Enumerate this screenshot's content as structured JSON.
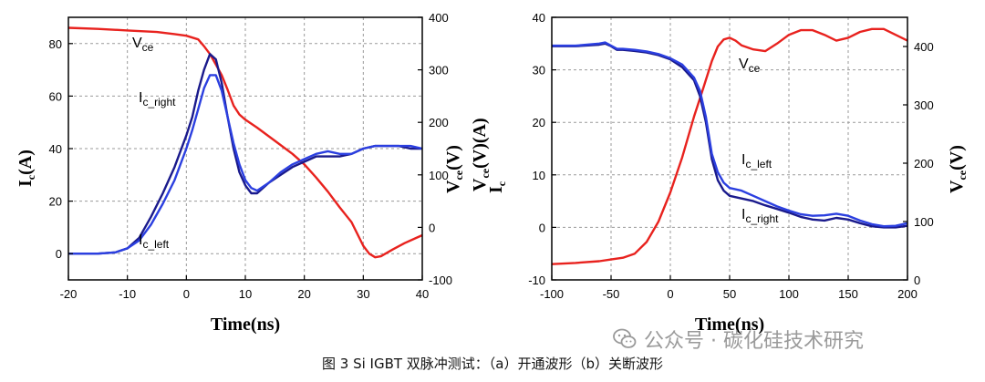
{
  "caption": "图 3 Si IGBT 双脉冲测试：（a）开通波形（b）关断波形",
  "watermark": "公众号 · 碳化硅技术研究",
  "chart_data": [
    {
      "panel": "a",
      "type": "line",
      "xlabel": "Time(ns)",
      "ylabel_left": {
        "main": "I",
        "sub": "c",
        "rest": "(A)"
      },
      "ylabel_right": {
        "main": "V",
        "sub": "ce",
        "rest": "(V)"
      },
      "xlim": [
        -20,
        40
      ],
      "ylim_left": [
        -10,
        90
      ],
      "ylim_right": [
        -100,
        400
      ],
      "xticks": [
        -20,
        -10,
        0,
        10,
        20,
        30,
        40
      ],
      "yticks_left": [
        0,
        20,
        40,
        60,
        80
      ],
      "yticks_right": [
        -100,
        0,
        100,
        200,
        300,
        400
      ],
      "grid": true,
      "annotations": [
        {
          "main": "V",
          "sub": "ce"
        },
        {
          "main": "I",
          "sub": "c_right"
        },
        {
          "main": "I",
          "sub": "c_left"
        }
      ],
      "series": [
        {
          "axis": "right",
          "color": "#e8221e",
          "x": [
            -20,
            -15,
            -10,
            -5,
            -2,
            0,
            2,
            3,
            4,
            5,
            6,
            7,
            8,
            9,
            10,
            12,
            15,
            18,
            20,
            22,
            24,
            26,
            28,
            30,
            31,
            32,
            33,
            35,
            37,
            39,
            40
          ],
          "y": [
            380,
            378,
            375,
            372,
            368,
            365,
            358,
            345,
            330,
            310,
            290,
            262,
            232,
            215,
            205,
            190,
            165,
            140,
            120,
            95,
            68,
            38,
            10,
            -35,
            -50,
            -57,
            -55,
            -42,
            -30,
            -20,
            -15
          ]
        },
        {
          "axis": "left",
          "color": "#1a1a8c",
          "x": [
            -20,
            -15,
            -12,
            -10,
            -8,
            -6,
            -4,
            -2,
            0,
            1,
            2,
            3,
            4,
            5,
            6,
            7,
            8,
            9,
            10,
            11,
            12,
            14,
            16,
            18,
            20,
            22,
            24,
            26,
            28,
            30,
            32,
            34,
            36,
            38,
            40
          ],
          "y": [
            0,
            0,
            0.5,
            2,
            6,
            14,
            23,
            33,
            45,
            52,
            62,
            70,
            76,
            74,
            65,
            52,
            40,
            31,
            26,
            23,
            23,
            27,
            30,
            33,
            35,
            37,
            37,
            37,
            38,
            40,
            41,
            41,
            41,
            40,
            40
          ]
        },
        {
          "axis": "left",
          "color": "#2b3fe0",
          "x": [
            -20,
            -15,
            -12,
            -10,
            -8,
            -6,
            -4,
            -2,
            0,
            1,
            2,
            3,
            4,
            5,
            6,
            7,
            8,
            9,
            10,
            11,
            12,
            14,
            16,
            18,
            20,
            22,
            24,
            26,
            28,
            30,
            32,
            34,
            36,
            38,
            40
          ],
          "y": [
            0,
            0,
            0.5,
            2,
            5,
            11,
            19,
            28,
            40,
            47,
            55,
            63,
            68,
            68,
            62,
            52,
            42,
            34,
            28,
            25,
            24,
            27,
            31,
            34,
            36,
            38,
            39,
            38,
            38,
            40,
            41,
            41,
            41,
            41,
            40
          ]
        }
      ]
    },
    {
      "panel": "b",
      "type": "line",
      "xlabel": "Time(ns)",
      "ylabel_left": {
        "main": "V",
        "sub": "ce",
        "main2": "I",
        "sub2": "c",
        "rest": "(V)(A)"
      },
      "ylabel_right": {
        "main": "V",
        "sub": "ce",
        "rest": "(V)"
      },
      "xlim": [
        -100,
        200
      ],
      "ylim_left": [
        -10,
        40
      ],
      "ylim_right": [
        0,
        450
      ],
      "xticks": [
        -100,
        -50,
        0,
        50,
        100,
        150,
        200
      ],
      "yticks_left": [
        -10,
        0,
        10,
        20,
        30,
        40
      ],
      "yticks_right": [
        0,
        100,
        200,
        300,
        400
      ],
      "grid": true,
      "annotations": [
        {
          "main": "V",
          "sub": "ce"
        },
        {
          "main": "I",
          "sub": "c_left"
        },
        {
          "main": "I",
          "sub": "c_right"
        }
      ],
      "series": [
        {
          "axis": "right",
          "color": "#e8221e",
          "x": [
            -100,
            -80,
            -60,
            -50,
            -40,
            -30,
            -20,
            -10,
            0,
            10,
            20,
            28,
            35,
            40,
            45,
            50,
            55,
            60,
            70,
            80,
            90,
            100,
            110,
            120,
            130,
            140,
            150,
            160,
            170,
            180,
            190,
            200
          ],
          "y": [
            27,
            29,
            32,
            35,
            38,
            45,
            65,
            100,
            150,
            210,
            280,
            330,
            375,
            400,
            412,
            415,
            410,
            402,
            395,
            392,
            405,
            420,
            428,
            428,
            420,
            410,
            415,
            425,
            430,
            430,
            420,
            410
          ]
        },
        {
          "axis": "left",
          "color": "#1a1a8c",
          "x": [
            -100,
            -80,
            -60,
            -55,
            -50,
            -45,
            -40,
            -30,
            -20,
            -10,
            0,
            10,
            20,
            25,
            30,
            35,
            40,
            45,
            50,
            60,
            70,
            80,
            90,
            100,
            110,
            120,
            130,
            140,
            150,
            160,
            170,
            180,
            190,
            200
          ],
          "y": [
            34.5,
            34.5,
            34.8,
            35,
            34.5,
            33.8,
            33.8,
            33.6,
            33.3,
            32.8,
            32,
            30.5,
            28,
            25,
            20,
            13,
            9,
            7,
            6,
            5.5,
            5,
            4.2,
            3.5,
            2.8,
            2,
            1.5,
            1.3,
            1.8,
            1.5,
            0.8,
            0.2,
            0,
            0,
            0.3
          ]
        },
        {
          "axis": "left",
          "color": "#2b3fe0",
          "x": [
            -100,
            -80,
            -60,
            -55,
            -50,
            -45,
            -40,
            -30,
            -20,
            -10,
            0,
            10,
            20,
            25,
            30,
            35,
            40,
            45,
            50,
            60,
            70,
            80,
            90,
            100,
            110,
            120,
            130,
            140,
            150,
            160,
            170,
            180,
            190,
            200
          ],
          "y": [
            34.6,
            34.6,
            35,
            35.2,
            34.6,
            34,
            34,
            33.8,
            33.5,
            33,
            32.2,
            31,
            28.5,
            26,
            21,
            14,
            10.5,
            8.5,
            7.5,
            7,
            6,
            5,
            4,
            3.2,
            2.5,
            2.2,
            2.3,
            2.6,
            2.2,
            1.3,
            0.6,
            0.2,
            0.3,
            0.8
          ]
        }
      ]
    }
  ]
}
